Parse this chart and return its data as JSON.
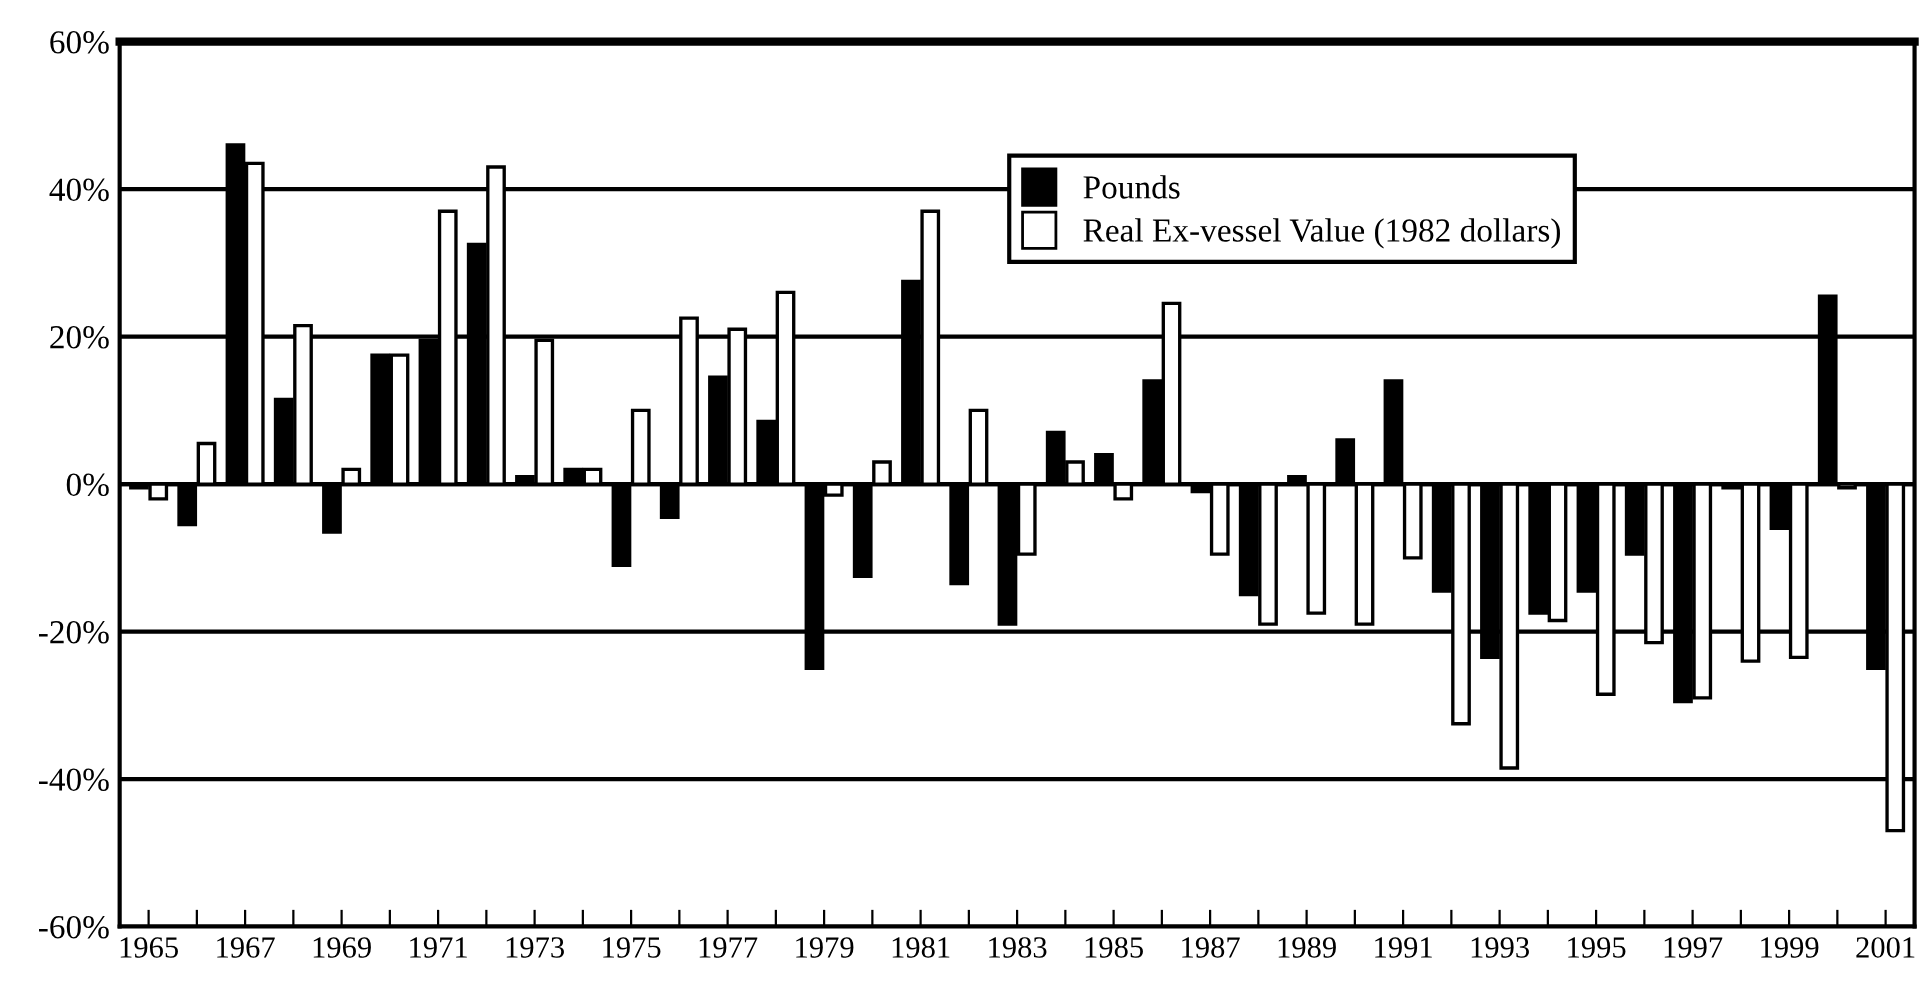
{
  "chart_data": {
    "type": "bar",
    "categories": [
      "1965",
      null,
      "1967",
      null,
      "1969",
      null,
      "1971",
      null,
      "1973",
      null,
      "1975",
      null,
      "1977",
      null,
      "1979",
      null,
      "1981",
      null,
      "1983",
      null,
      "1985",
      null,
      "1987",
      null,
      "1989",
      null,
      "1991",
      null,
      "1993",
      null,
      "1995",
      null,
      "1997",
      null,
      "1999",
      null,
      "2001"
    ],
    "series": [
      {
        "name": "Pounds",
        "color": "#000000",
        "values": [
          -0.5,
          -5.5,
          46,
          11.5,
          -6.5,
          17.5,
          19.5,
          32.5,
          1,
          2,
          -11,
          -4.5,
          14.5,
          8.5,
          -25,
          -12.5,
          27.5,
          -13.5,
          -19,
          7,
          4,
          14,
          -1,
          -15,
          1,
          6,
          14,
          -14.5,
          -23.5,
          -17.5,
          -14.5,
          -9.5,
          -29.5,
          -0.5,
          -6,
          25.5,
          -25
        ]
      },
      {
        "name": "Real Ex-vessel Value (1982 dollars)",
        "color": "#ffffff",
        "values": [
          -2,
          5.5,
          43.5,
          21.5,
          2,
          17.5,
          37,
          43,
          19.5,
          2,
          10,
          22.5,
          21,
          26,
          -1.5,
          3,
          37,
          10,
          -9.5,
          3,
          -2,
          24.5,
          -9.5,
          -19,
          -17.5,
          -19,
          -10,
          -32.5,
          -38.5,
          -18.5,
          -28.5,
          -21.5,
          -29,
          -24,
          -23.5,
          -0.5,
          -47
        ]
      }
    ],
    "ylim": [
      -60,
      60
    ],
    "yticks": [
      {
        "value": -60,
        "label": "-60%"
      },
      {
        "value": -40,
        "label": "-40%"
      },
      {
        "value": -20,
        "label": "-20%"
      },
      {
        "value": 0,
        "label": "0%"
      },
      {
        "value": 20,
        "label": "20%"
      },
      {
        "value": 40,
        "label": "40%"
      },
      {
        "value": 60,
        "label": "60%"
      }
    ],
    "grid": "y",
    "legend": "top right"
  }
}
